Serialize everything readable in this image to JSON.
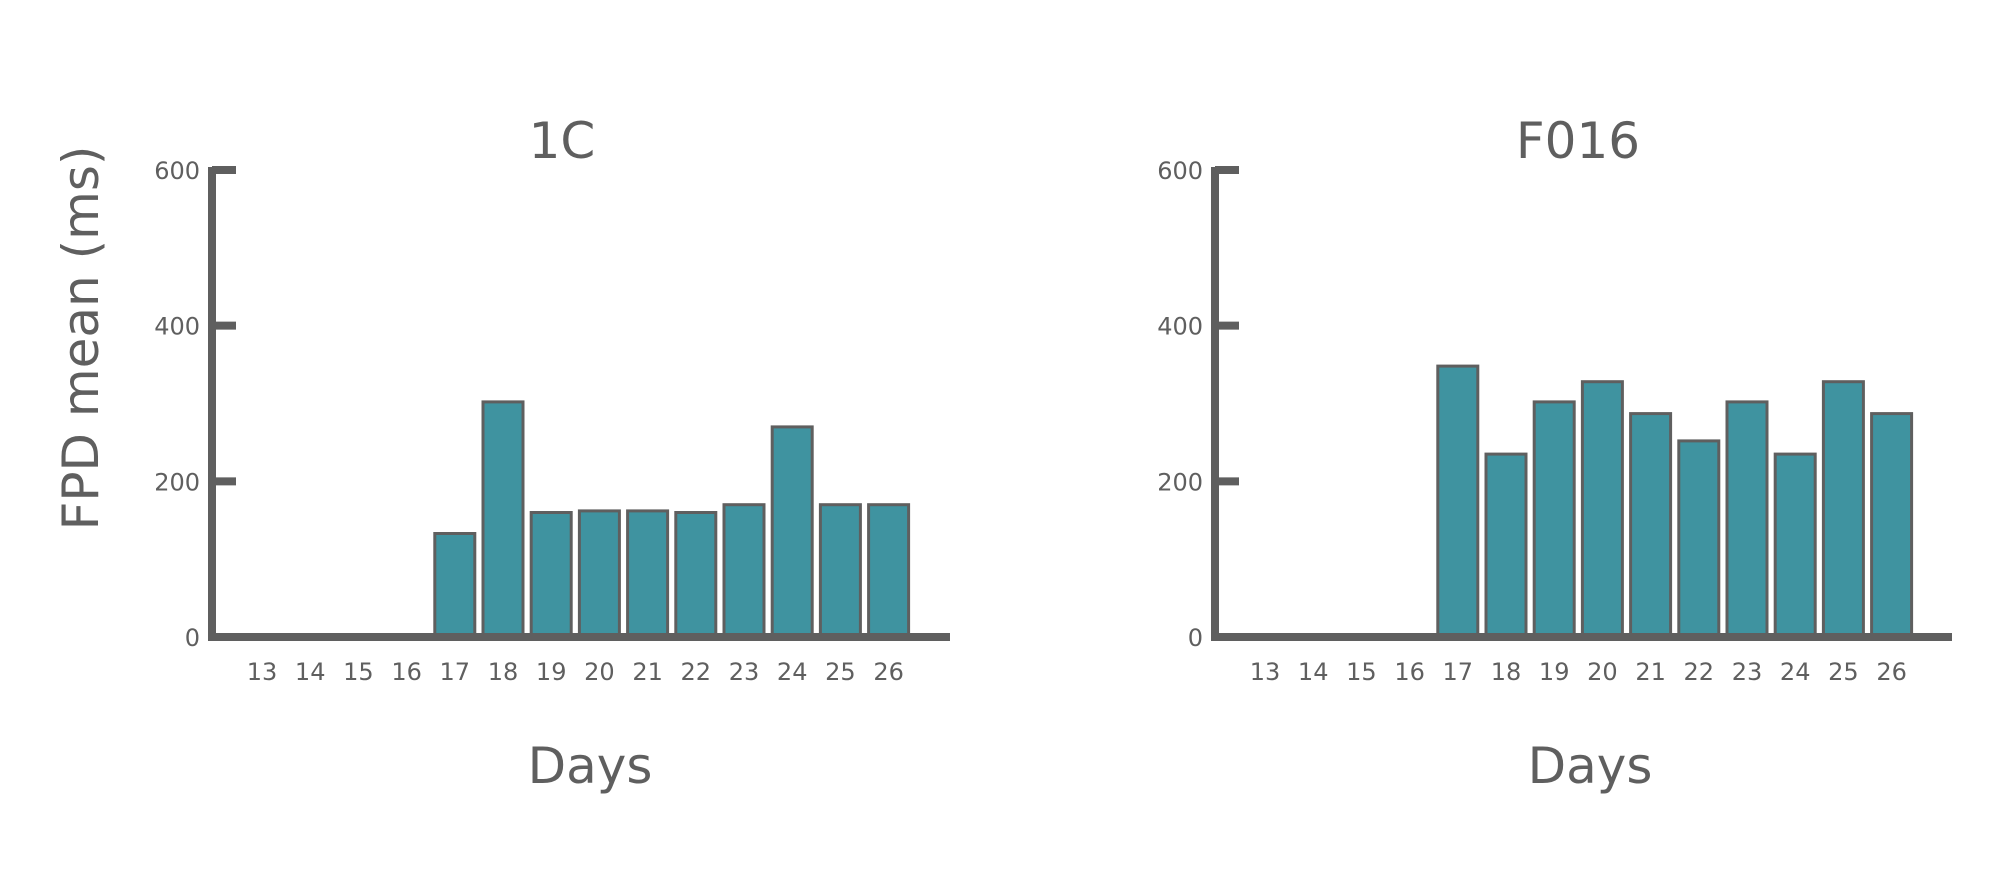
{
  "colors": {
    "bar_fill": "#3f93a0",
    "bar_stroke": "#5f5f5f",
    "axis": "#5f5f5f",
    "text": "#5f5f5f",
    "background": "#ffffff"
  },
  "chart_data": [
    {
      "type": "bar",
      "title": "1C",
      "xlabel": "Days",
      "ylabel": "FPD mean (ms)",
      "ylim": [
        0,
        600
      ],
      "yticks": [
        0,
        200,
        400,
        600
      ],
      "grid": false,
      "categories": [
        "13",
        "14",
        "15",
        "16",
        "17",
        "18",
        "19",
        "20",
        "21",
        "22",
        "23",
        "24",
        "25",
        "26"
      ],
      "values": [
        0,
        0,
        0,
        0,
        133,
        302,
        160,
        162,
        162,
        160,
        170,
        270,
        170,
        170
      ]
    },
    {
      "type": "bar",
      "title": "F016",
      "xlabel": "Days",
      "ylabel": "",
      "ylim": [
        0,
        600
      ],
      "yticks": [
        0,
        200,
        400,
        600
      ],
      "grid": false,
      "categories": [
        "13",
        "14",
        "15",
        "16",
        "17",
        "18",
        "19",
        "20",
        "21",
        "22",
        "23",
        "24",
        "25",
        "26"
      ],
      "values": [
        0,
        0,
        0,
        0,
        348,
        235,
        302,
        328,
        287,
        252,
        302,
        235,
        328,
        287
      ]
    }
  ]
}
